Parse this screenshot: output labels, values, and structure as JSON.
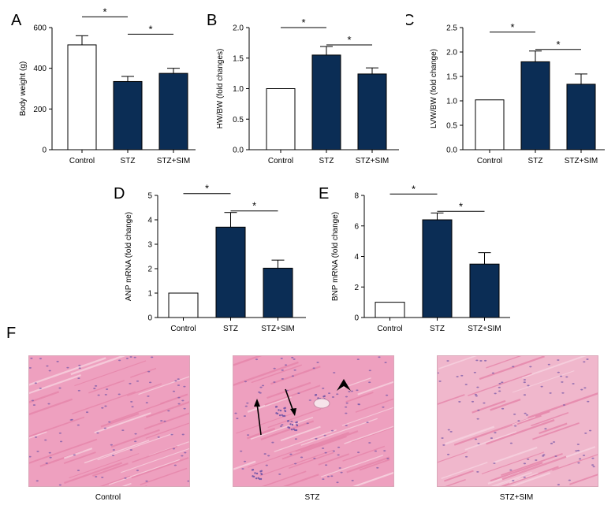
{
  "colors": {
    "control": "#ffffff",
    "treated": "#0b2d55",
    "tissue": "#eea0bf",
    "nuclei": "#7a5aa8"
  },
  "chart_data": [
    {
      "panel": "A",
      "type": "bar",
      "categories": [
        "Control",
        "STZ",
        "STZ+SIM"
      ],
      "values": [
        515,
        335,
        375
      ],
      "errors": [
        45,
        25,
        25
      ],
      "ylabel": "Body weight (g)",
      "ylim": [
        0,
        600
      ],
      "yticks": [
        0,
        200,
        400,
        600
      ],
      "significance": [
        {
          "from": 0,
          "to": 1,
          "label": "*"
        },
        {
          "from": 1,
          "to": 2,
          "label": "*"
        }
      ]
    },
    {
      "panel": "B",
      "type": "bar",
      "categories": [
        "Control",
        "STZ",
        "STZ+SIM"
      ],
      "values": [
        1.0,
        1.55,
        1.24
      ],
      "errors": [
        0,
        0.14,
        0.1
      ],
      "ylabel": "HW/BW (fold changes)",
      "ylim": [
        0,
        2.0
      ],
      "yticks": [
        "0.0",
        "0.5",
        "1.0",
        "1.5",
        "2.0"
      ],
      "significance": [
        {
          "from": 0,
          "to": 1,
          "label": "*"
        },
        {
          "from": 1,
          "to": 2,
          "label": "*"
        }
      ]
    },
    {
      "panel": "C",
      "type": "bar",
      "categories": [
        "Control",
        "STZ",
        "STZ+SIM"
      ],
      "values": [
        1.02,
        1.8,
        1.34
      ],
      "errors": [
        0,
        0.22,
        0.21
      ],
      "ylabel": "LVW/BW (fold change)",
      "ylim": [
        0,
        2.5
      ],
      "yticks": [
        "0.0",
        "0.5",
        "1.0",
        "1.5",
        "2.0",
        "2.5"
      ],
      "significance": [
        {
          "from": 0,
          "to": 1,
          "label": "*"
        },
        {
          "from": 1,
          "to": 2,
          "label": "*"
        }
      ]
    },
    {
      "panel": "D",
      "type": "bar",
      "categories": [
        "Control",
        "STZ",
        "STZ+SIM"
      ],
      "values": [
        1.0,
        3.7,
        2.02
      ],
      "errors": [
        0,
        0.6,
        0.33
      ],
      "ylabel": "ANP mRNA (fold change)",
      "ylim": [
        0,
        5
      ],
      "yticks": [
        "0",
        "1",
        "2",
        "3",
        "4",
        "5"
      ],
      "significance": [
        {
          "from": 0,
          "to": 1,
          "label": "*"
        },
        {
          "from": 1,
          "to": 2,
          "label": "*"
        }
      ]
    },
    {
      "panel": "E",
      "type": "bar",
      "categories": [
        "Control",
        "STZ",
        "STZ+SIM"
      ],
      "values": [
        1.0,
        6.4,
        3.5
      ],
      "errors": [
        0,
        0.45,
        0.75
      ],
      "ylabel": "BNP mRNA (fold change)",
      "ylim": [
        0,
        8
      ],
      "yticks": [
        "0",
        "2",
        "4",
        "6",
        "8"
      ],
      "significance": [
        {
          "from": 0,
          "to": 1,
          "label": "*"
        },
        {
          "from": 1,
          "to": 2,
          "label": "*"
        }
      ]
    }
  ],
  "histology": {
    "panel_label": "F",
    "images": [
      {
        "caption": "Control"
      },
      {
        "caption": "STZ"
      },
      {
        "caption": "STZ+SIM"
      }
    ]
  }
}
